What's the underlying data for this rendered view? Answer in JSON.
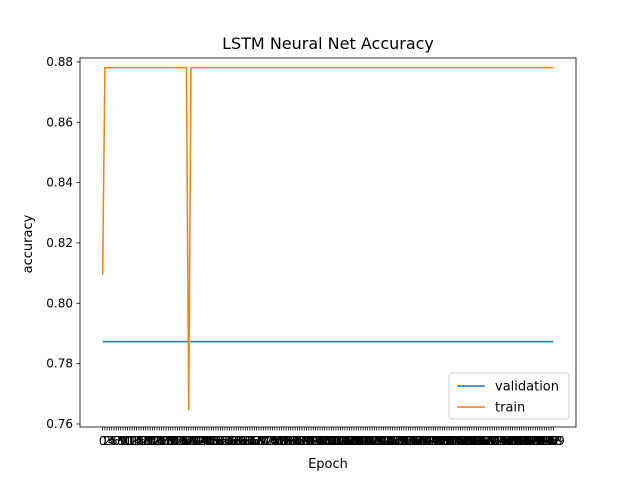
{
  "chart_data": {
    "type": "line",
    "title": "LSTM Neural Net Accuracy",
    "xlabel": "Epoch",
    "ylabel": "accuracy",
    "x": [
      0,
      1,
      2,
      3,
      4,
      5,
      6,
      7,
      8,
      9,
      10,
      11,
      12,
      13,
      14,
      15,
      16,
      17,
      18,
      19,
      20,
      21,
      22,
      23,
      24,
      25,
      26,
      27,
      28,
      29,
      30,
      31,
      32,
      33,
      34,
      35,
      36,
      37,
      38,
      39,
      40,
      41,
      42,
      43,
      44,
      45,
      46,
      47,
      48,
      49,
      50,
      51,
      52,
      53,
      54,
      55,
      56,
      57,
      58,
      59,
      60,
      61,
      62,
      63,
      64,
      65,
      66,
      67,
      68,
      69,
      70,
      71,
      72,
      73,
      74,
      75,
      76,
      77,
      78,
      79,
      80,
      81,
      82,
      83,
      84,
      85,
      86,
      87,
      88,
      89,
      90,
      91,
      92,
      93,
      94,
      95,
      96,
      97,
      98,
      99,
      100,
      101,
      102,
      103,
      104,
      105,
      106,
      107,
      108,
      109,
      110,
      111,
      112,
      113,
      114,
      115,
      116,
      117,
      118,
      119,
      120,
      121,
      122,
      123,
      124,
      125,
      126,
      127,
      128,
      129,
      130,
      131,
      132,
      133,
      134,
      135,
      136,
      137,
      138,
      139,
      140,
      141,
      142,
      143,
      144,
      145,
      146,
      147,
      148,
      149,
      150,
      151,
      152,
      153,
      154,
      155,
      156,
      157,
      158,
      159,
      160,
      161,
      162,
      163,
      164,
      165,
      166,
      167,
      168,
      169,
      170,
      171,
      172,
      173,
      174,
      175,
      176,
      177,
      178,
      179,
      180,
      181,
      182,
      183,
      184,
      185,
      186,
      187,
      188,
      189,
      190,
      191,
      192,
      193,
      194,
      195,
      196,
      197,
      198,
      199
    ],
    "xlim": [
      -10,
      209
    ],
    "ylim": [
      0.759,
      0.8813
    ],
    "yticks": [
      0.76,
      0.78,
      0.8,
      0.82,
      0.84,
      0.86,
      0.88
    ],
    "ytick_labels": [
      "0.76",
      "0.78",
      "0.80",
      "0.82",
      "0.84",
      "0.86",
      "0.88"
    ],
    "grid": false,
    "legend_position": "lower-right",
    "series": [
      {
        "name": "validation",
        "color": "#1f77b4",
        "points": [
          [
            0,
            0.7873
          ],
          [
            199,
            0.7873
          ]
        ]
      },
      {
        "name": "train",
        "color": "#ff7f0e",
        "points": [
          [
            0,
            0.8095
          ],
          [
            1,
            0.8781
          ],
          [
            37,
            0.8781
          ],
          [
            38,
            0.7647
          ],
          [
            39,
            0.8781
          ],
          [
            199,
            0.8781
          ]
        ]
      }
    ]
  }
}
